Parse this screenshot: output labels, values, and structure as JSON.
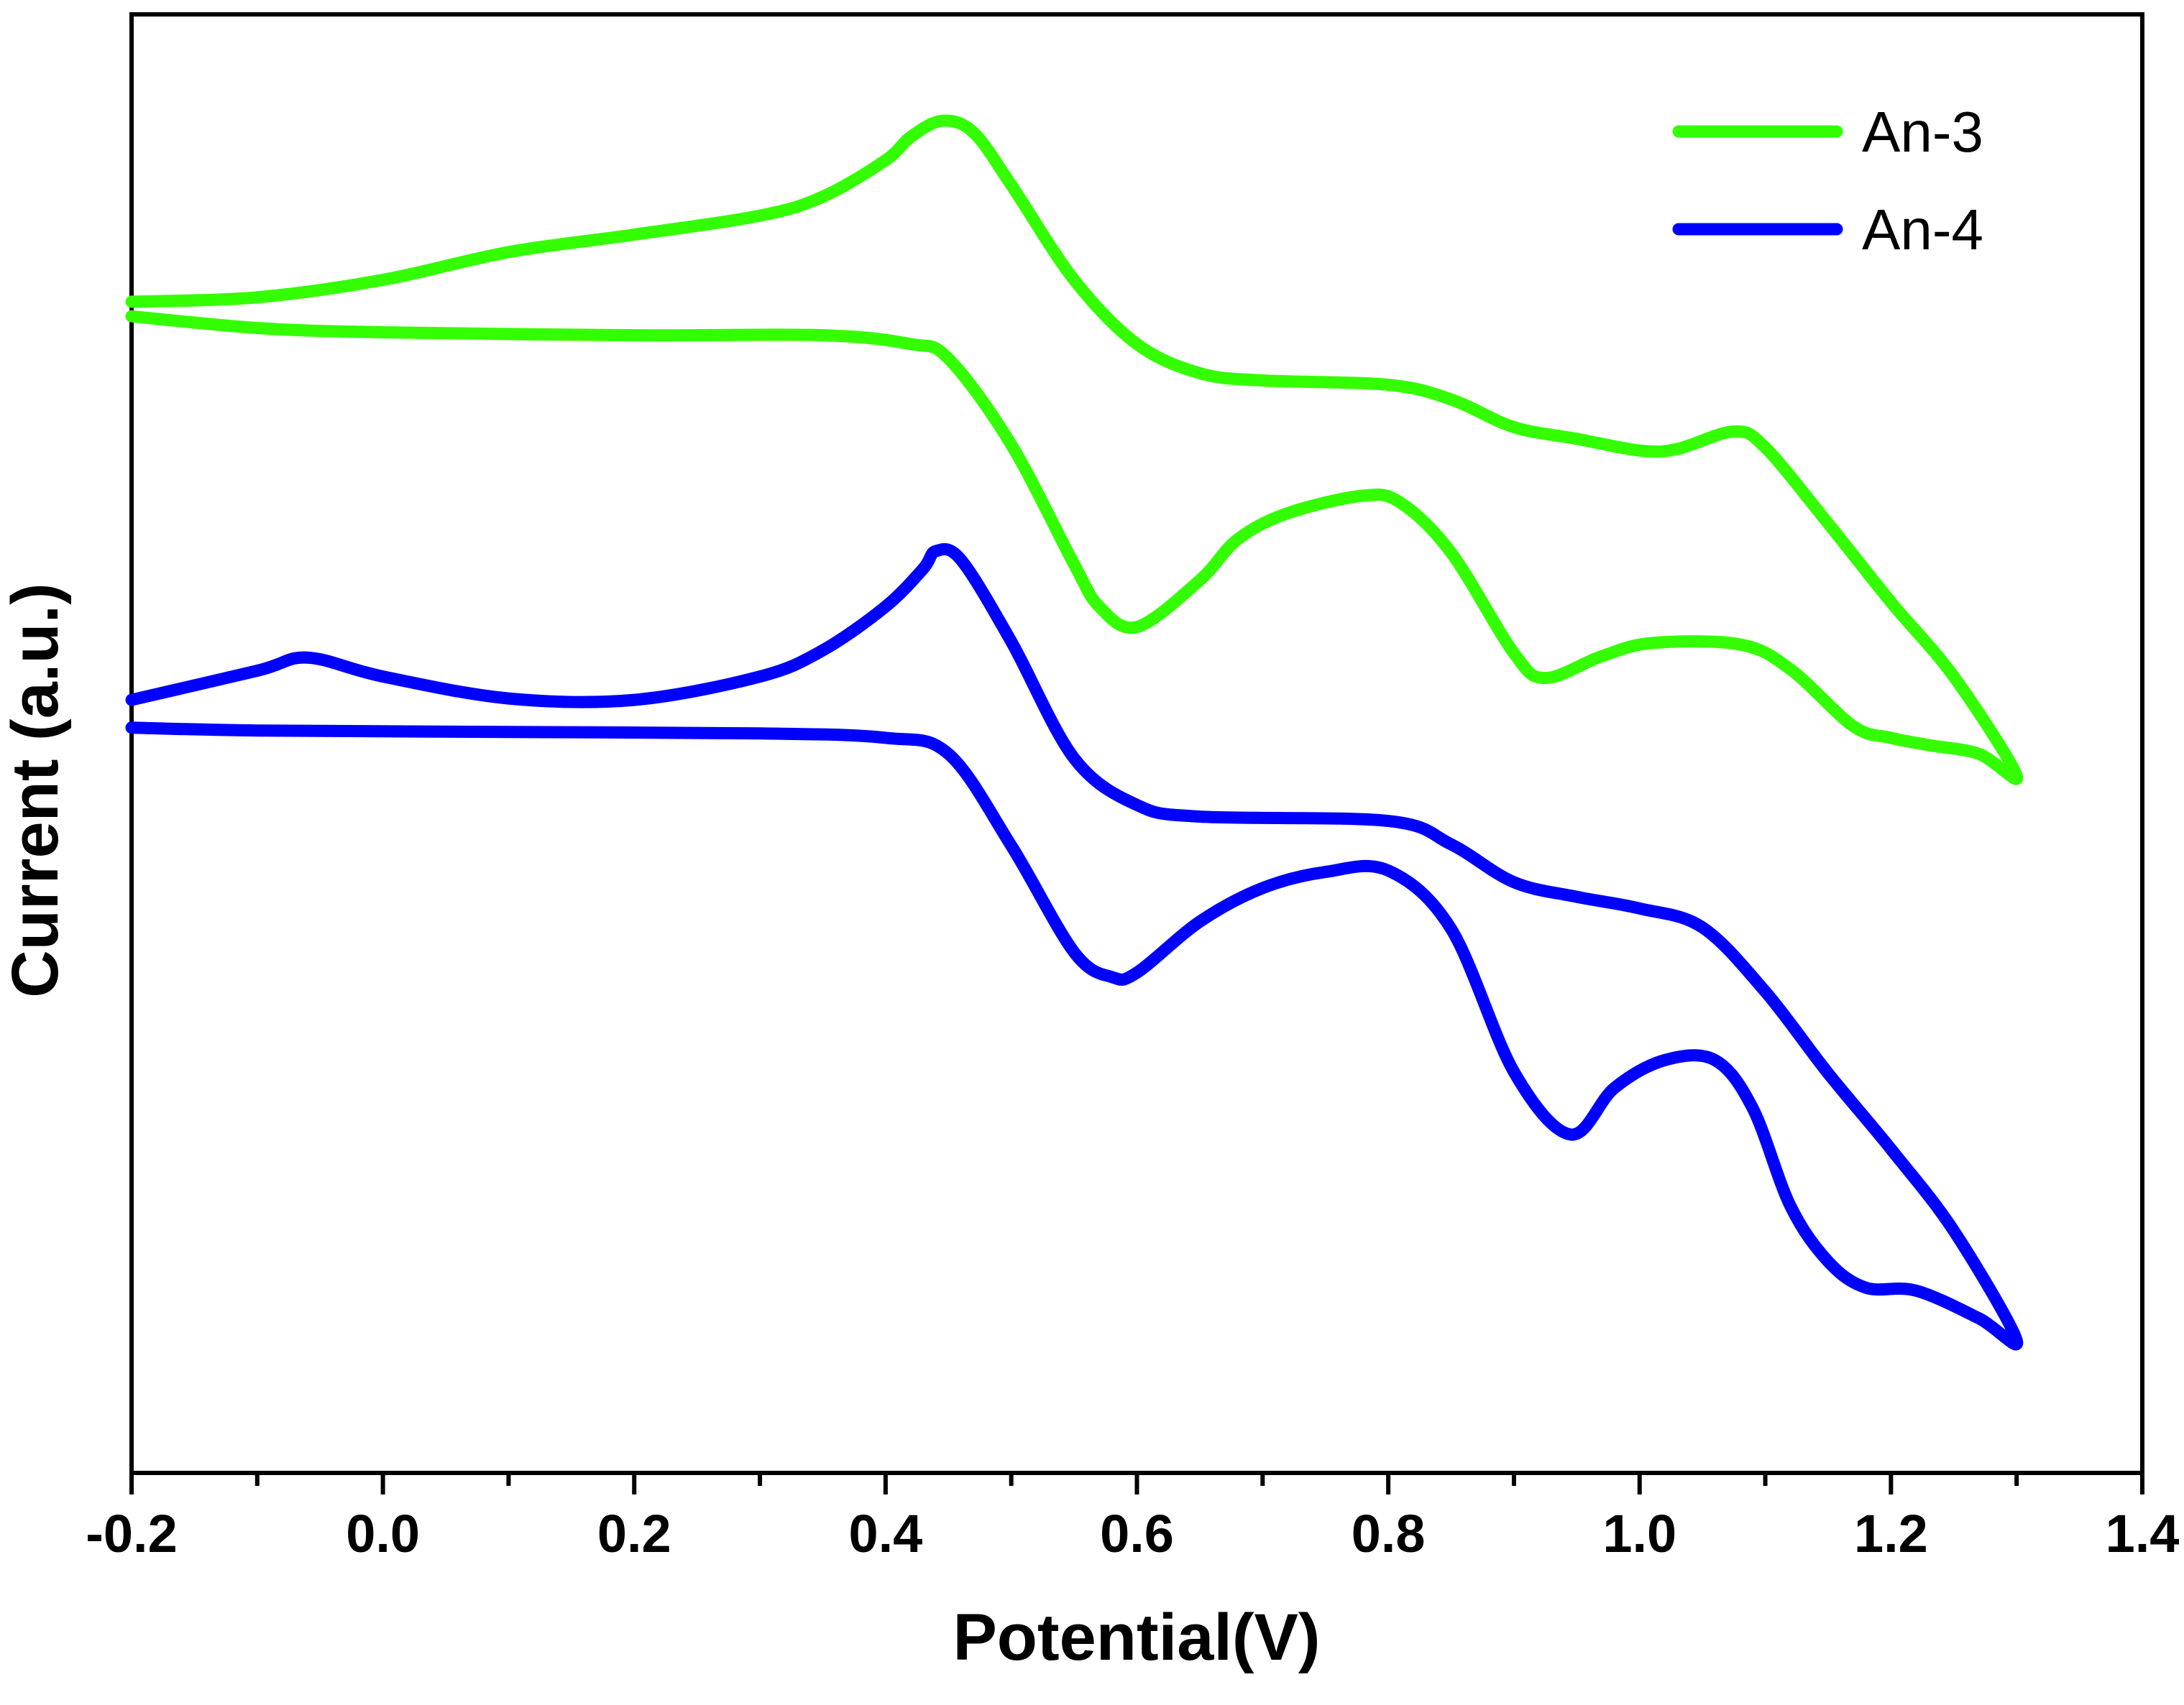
{
  "chart_data": {
    "type": "line",
    "title": "",
    "xlabel": "Potential(V)",
    "ylabel": "Current (a.u.)",
    "xlim": [
      -0.2,
      1.4
    ],
    "ylim": [
      0,
      100
    ],
    "x_ticks": [
      -0.2,
      0.0,
      0.2,
      0.4,
      0.6,
      0.8,
      1.0,
      1.2,
      1.4
    ],
    "x_tick_labels": [
      "-0.2",
      "0.0",
      "0.2",
      "0.4",
      "0.6",
      "0.8",
      "1.0",
      "1.2",
      "1.4"
    ],
    "y_ticks_shown": false,
    "grid": false,
    "legend_position": "top-right",
    "series": [
      {
        "name": "An-3",
        "color": "#33ff00",
        "points": [
          [
            -0.2,
            80.3
          ],
          [
            -0.1,
            80.6
          ],
          [
            0.0,
            81.8
          ],
          [
            0.1,
            83.7
          ],
          [
            0.2,
            84.9
          ],
          [
            0.3,
            86.2
          ],
          [
            0.35,
            87.5
          ],
          [
            0.4,
            90.0
          ],
          [
            0.42,
            91.6
          ],
          [
            0.445,
            92.7
          ],
          [
            0.47,
            91.9
          ],
          [
            0.5,
            88.3
          ],
          [
            0.55,
            81.8
          ],
          [
            0.6,
            77.4
          ],
          [
            0.65,
            75.4
          ],
          [
            0.7,
            74.9
          ],
          [
            0.8,
            74.6
          ],
          [
            0.85,
            73.6
          ],
          [
            0.9,
            71.7
          ],
          [
            0.95,
            70.9
          ],
          [
            1.0,
            70.1
          ],
          [
            1.03,
            70.2
          ],
          [
            1.075,
            71.4
          ],
          [
            1.1,
            70.3
          ],
          [
            1.15,
            65.1
          ],
          [
            1.2,
            59.7
          ],
          [
            1.25,
            54.6
          ],
          [
            1.3,
            47.8
          ],
          [
            1.27,
            49.3
          ],
          [
            1.23,
            49.9
          ],
          [
            1.2,
            50.4
          ],
          [
            1.17,
            51.2
          ],
          [
            1.12,
            55.1
          ],
          [
            1.08,
            56.8
          ],
          [
            1.01,
            56.9
          ],
          [
            0.97,
            56.0
          ],
          [
            0.925,
            54.5
          ],
          [
            0.9,
            56.2
          ],
          [
            0.85,
            63.1
          ],
          [
            0.81,
            66.5
          ],
          [
            0.78,
            67.0
          ],
          [
            0.72,
            65.8
          ],
          [
            0.68,
            64.0
          ],
          [
            0.65,
            61.2
          ],
          [
            0.6,
            58.0
          ],
          [
            0.57,
            59.4
          ],
          [
            0.55,
            62.3
          ],
          [
            0.5,
            70.5
          ],
          [
            0.45,
            76.4
          ],
          [
            0.42,
            77.4
          ],
          [
            0.35,
            78.0
          ],
          [
            0.2,
            78.0
          ],
          [
            0.0,
            78.2
          ],
          [
            -0.1,
            78.5
          ],
          [
            -0.2,
            79.3
          ]
        ]
      },
      {
        "name": "An-4",
        "color": "#0000ff",
        "points": [
          [
            -0.2,
            53.0
          ],
          [
            -0.1,
            55.0
          ],
          [
            -0.06,
            55.9
          ],
          [
            0.0,
            54.6
          ],
          [
            0.1,
            53.1
          ],
          [
            0.2,
            53.0
          ],
          [
            0.3,
            54.6
          ],
          [
            0.35,
            56.4
          ],
          [
            0.4,
            59.4
          ],
          [
            0.43,
            62.0
          ],
          [
            0.44,
            63.2
          ],
          [
            0.46,
            62.6
          ],
          [
            0.5,
            57.0
          ],
          [
            0.55,
            49.0
          ],
          [
            0.6,
            45.8
          ],
          [
            0.65,
            45.0
          ],
          [
            0.8,
            44.7
          ],
          [
            0.85,
            43.1
          ],
          [
            0.9,
            40.5
          ],
          [
            0.95,
            39.5
          ],
          [
            1.0,
            38.7
          ],
          [
            1.05,
            37.4
          ],
          [
            1.1,
            33.0
          ],
          [
            1.15,
            27.4
          ],
          [
            1.2,
            22.2
          ],
          [
            1.25,
            16.6
          ],
          [
            1.3,
            9.1
          ],
          [
            1.27,
            10.6
          ],
          [
            1.22,
            12.5
          ],
          [
            1.18,
            12.7
          ],
          [
            1.15,
            14.5
          ],
          [
            1.12,
            18.3
          ],
          [
            1.09,
            25.0
          ],
          [
            1.06,
            28.3
          ],
          [
            1.02,
            28.3
          ],
          [
            0.98,
            26.4
          ],
          [
            0.945,
            23.2
          ],
          [
            0.9,
            27.5
          ],
          [
            0.85,
            37.3
          ],
          [
            0.8,
            41.3
          ],
          [
            0.75,
            41.2
          ],
          [
            0.7,
            40.1
          ],
          [
            0.65,
            37.8
          ],
          [
            0.6,
            34.3
          ],
          [
            0.58,
            34.0
          ],
          [
            0.55,
            35.7
          ],
          [
            0.5,
            43.0
          ],
          [
            0.45,
            49.3
          ],
          [
            0.4,
            50.4
          ],
          [
            0.3,
            50.7
          ],
          [
            0.1,
            50.8
          ],
          [
            -0.1,
            50.9
          ],
          [
            -0.2,
            51.1
          ]
        ]
      }
    ]
  }
}
